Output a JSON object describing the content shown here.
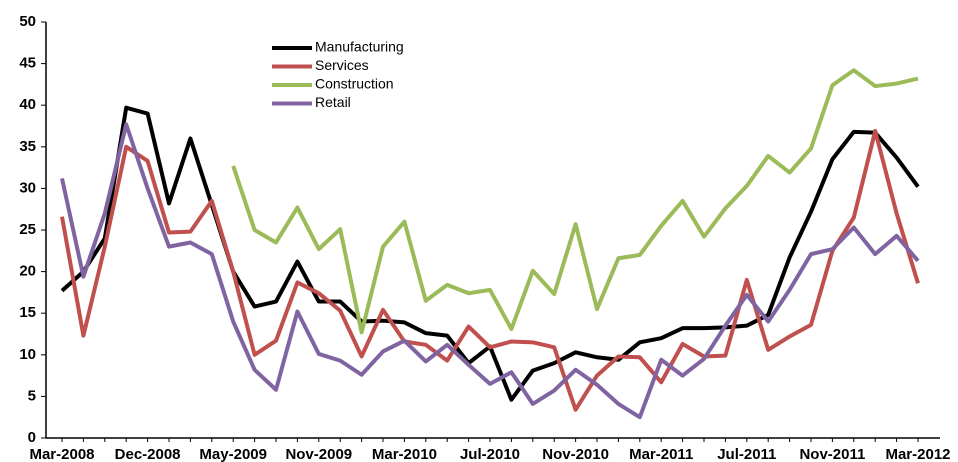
{
  "chart_data": {
    "type": "line",
    "categories": [
      "Mar-2008",
      null,
      null,
      null,
      "Dec-2008",
      null,
      null,
      null,
      "May-2009",
      null,
      null,
      null,
      "Nov-2009",
      null,
      null,
      null,
      "Mar-2010",
      null,
      null,
      null,
      "Jul-2010",
      null,
      null,
      null,
      "Nov-2010",
      null,
      null,
      null,
      "Mar-2011",
      null,
      null,
      null,
      "Jul-2011",
      null,
      null,
      null,
      "Nov-2011",
      null,
      null,
      null,
      "Mar-2012"
    ],
    "series": [
      {
        "name": "Manufacturing",
        "color": "#000000",
        "values": [
          17.7,
          20,
          24,
          39.7,
          39,
          28.2,
          36,
          28,
          20,
          15.8,
          16.4,
          21.2,
          16.4,
          16.4,
          14,
          14.1,
          13.9,
          12.6,
          12.3,
          9,
          11,
          4.6,
          8.1,
          9,
          10.3,
          9.7,
          9.4,
          11.5,
          12,
          13.2,
          13.2,
          13.3,
          13.5,
          14.8,
          21.7,
          27.2,
          33.5,
          36.8,
          36.7,
          33.7,
          30.2
        ]
      },
      {
        "name": "Services",
        "color": "#c0504d",
        "values": [
          26.6,
          12.3,
          23,
          35,
          33.3,
          24.7,
          24.8,
          28.5,
          20,
          10,
          11.7,
          18.7,
          17.4,
          15.3,
          9.8,
          15.4,
          11.6,
          11.2,
          9.3,
          13.4,
          10.9,
          11.6,
          11.5,
          10.9,
          3.4,
          7.5,
          9.8,
          9.7,
          6.7,
          11.3,
          9.8,
          9.9,
          19,
          10.6,
          12.2,
          13.6,
          22.5,
          26.5,
          36.9,
          27,
          18.6
        ]
      },
      {
        "name": "Construction",
        "color": "#9bbb59",
        "values": [
          null,
          null,
          null,
          null,
          null,
          null,
          null,
          null,
          32.7,
          25,
          23.5,
          27.7,
          22.7,
          25.1,
          12.7,
          23,
          26,
          16.5,
          18.4,
          17.4,
          17.8,
          13.1,
          20.1,
          17.3,
          25.7,
          15.5,
          21.6,
          22,
          25.5,
          28.5,
          24.2,
          27.6,
          30.3,
          33.9,
          31.9,
          34.8,
          42.4,
          44.2,
          42.3,
          42.6,
          43.2
        ]
      },
      {
        "name": "Retail",
        "color": "#8064a2",
        "values": [
          31.2,
          19.4,
          27,
          37.7,
          30,
          23,
          23.5,
          22.1,
          14,
          8.2,
          5.8,
          15.2,
          10.1,
          9.3,
          7.6,
          10.4,
          11.7,
          9.2,
          11.2,
          8.8,
          6.5,
          7.9,
          4.1,
          5.7,
          8.2,
          6.4,
          4.1,
          2.5,
          9.4,
          7.5,
          9.5,
          13.5,
          17.2,
          14,
          17.8,
          22.1,
          22.7,
          25.3,
          22.1,
          24.3,
          21.3
        ]
      }
    ],
    "ylim": [
      0,
      50
    ],
    "yticks": [
      0,
      5,
      10,
      15,
      20,
      25,
      30,
      35,
      40,
      45,
      50
    ],
    "grid": false
  }
}
